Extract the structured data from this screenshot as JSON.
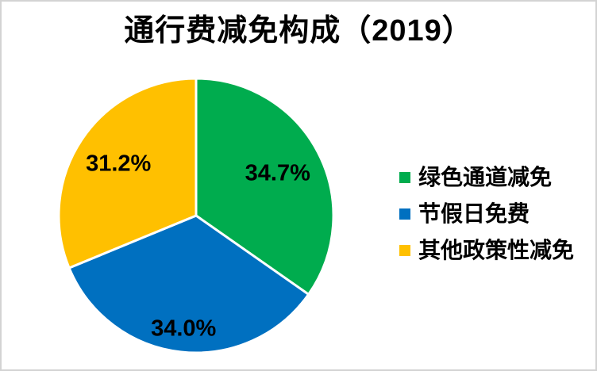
{
  "page": {
    "background": "#FFFFFF",
    "border_color": "#D3D3D3"
  },
  "chart_data": {
    "type": "pie",
    "title": "通行费减免构成（2019）",
    "categories": [
      "绿色通道减免",
      "节假日免费",
      "其他政策性减免"
    ],
    "series": [
      {
        "name": "绿色通道减免",
        "value": 34.7,
        "data_label": "34.7%",
        "color": "#00AC4E"
      },
      {
        "name": "节假日免费",
        "value": 34.0,
        "data_label": "34.0%",
        "color": "#0070C0"
      },
      {
        "name": "其他政策性减免",
        "value": 31.2,
        "data_label": "31.2%",
        "color": "#FFC000"
      }
    ],
    "start_angle_deg": 0,
    "direction": "clockwise",
    "legend_position": "right",
    "data_label_color": "#000000",
    "slice_border_color": "#FFFFFF",
    "label_radius_fractions": [
      0.67,
      0.83,
      0.68
    ]
  }
}
